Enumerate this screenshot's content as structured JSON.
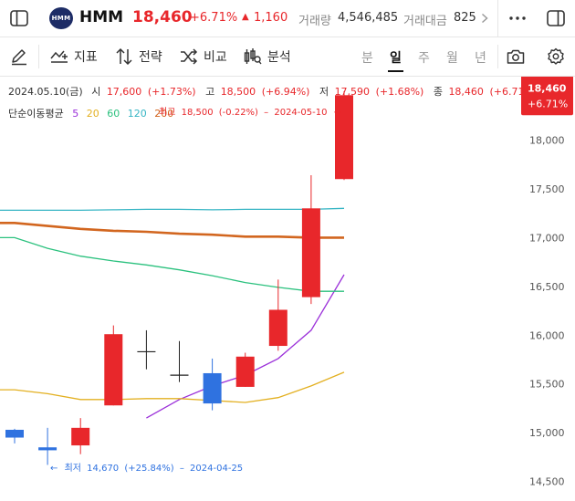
{
  "header": {
    "logo_text": "HMM",
    "name": "HMM",
    "price": "18,460",
    "change_pct": "+6.71%",
    "change_arrow": "▲",
    "change_abs": "1,160",
    "volume_label": "거래량",
    "volume_value": "4,546,485",
    "amount_label": "거래대금",
    "amount_value": "825",
    "icons": {
      "sidebar": "sidebar-toggle-icon",
      "more": "more-dots-icon",
      "panel": "panel-toggle-icon",
      "chevron": "chevron-right-icon"
    }
  },
  "toolbar": {
    "tools": [
      {
        "label": "지표",
        "icon": "indicator-icon"
      },
      {
        "label": "전략",
        "icon": "strategy-icon"
      },
      {
        "label": "비교",
        "icon": "compare-icon"
      },
      {
        "label": "분석",
        "icon": "analysis-icon"
      }
    ],
    "periods": [
      "분",
      "일",
      "주",
      "월",
      "년"
    ],
    "active_period": "일",
    "icons": {
      "draw": "pen-icon",
      "camera": "camera-icon",
      "settings": "gear-icon"
    }
  },
  "info": {
    "date": "2024.05.10(금)",
    "open_label": "시",
    "open": "17,600",
    "open_pct": "(+1.73%)",
    "high_label": "고",
    "high": "18,500",
    "high_pct": "(+6.94%)",
    "low_label": "저",
    "low": "17,590",
    "low_pct": "(+1.68%)",
    "close_label": "종",
    "close": "18,460",
    "close_pct": "(+6.71%)",
    "ma_label": "단순이동평균",
    "ma_periods": [
      "5",
      "20",
      "60",
      "120",
      "200"
    ]
  },
  "chart_data": {
    "type": "candlestick",
    "y_ticks": [
      14500,
      15000,
      15500,
      16000,
      16500,
      17000,
      17500,
      18000
    ],
    "y_tick_labels": [
      "14,500",
      "15,000",
      "15,500",
      "16,000",
      "16,500",
      "17,000",
      "17,500",
      "18,000"
    ],
    "ylim": [
      14300,
      18650
    ],
    "last_price_label": "18,460",
    "last_change_label": "+6.71%",
    "candles": [
      {
        "open": 15030,
        "high": 15040,
        "low": 14890,
        "close": 14950
      },
      {
        "open": 14850,
        "high": 15050,
        "low": 14670,
        "close": 14820
      },
      {
        "open": 14870,
        "high": 15150,
        "low": 14780,
        "close": 15050
      },
      {
        "open": 15280,
        "high": 16100,
        "low": 15280,
        "close": 16010
      },
      {
        "open": 15840,
        "high": 16050,
        "low": 15650,
        "close": 15830
      },
      {
        "open": 15600,
        "high": 15940,
        "low": 15520,
        "close": 15590
      },
      {
        "open": 15610,
        "high": 15760,
        "low": 15230,
        "close": 15300
      },
      {
        "open": 15470,
        "high": 15820,
        "low": 15470,
        "close": 15780
      },
      {
        "open": 15890,
        "high": 16570,
        "low": 15840,
        "close": 16260
      },
      {
        "open": 16390,
        "high": 17640,
        "low": 16320,
        "close": 17300
      },
      {
        "open": 17600,
        "high": 18500,
        "low": 17590,
        "close": 18460
      }
    ],
    "moving_averages": [
      {
        "name": "5",
        "color": "#9b30d9",
        "values": [
          null,
          null,
          null,
          null,
          15150,
          15340,
          15480,
          15590,
          15760,
          16050,
          16620
        ]
      },
      {
        "name": "20",
        "color": "#e3b021",
        "values": [
          15440,
          15400,
          15340,
          15340,
          15350,
          15350,
          15330,
          15310,
          15360,
          15480,
          15620
        ]
      },
      {
        "name": "60",
        "color": "#2bc17e",
        "values": [
          17000,
          16890,
          16810,
          16760,
          16720,
          16670,
          16610,
          16540,
          16490,
          16450,
          16450
        ]
      },
      {
        "name": "120",
        "color": "#36b5c4",
        "values": [
          17280,
          17280,
          17280,
          17285,
          17290,
          17290,
          17285,
          17290,
          17290,
          17290,
          17300
        ]
      },
      {
        "name": "200",
        "color": "#d2661f",
        "values": [
          17150,
          17120,
          17090,
          17070,
          17060,
          17040,
          17030,
          17010,
          17010,
          17000,
          17000
        ]
      }
    ],
    "annotations": {
      "high": {
        "label": "최고",
        "value": "18,500",
        "pct": "(-0.22%)",
        "date": "2024-05-10",
        "arrow": "→"
      },
      "low": {
        "label": "최저",
        "value": "14,670",
        "pct": "(+25.84%)",
        "date": "2024-04-25",
        "arrow": "←"
      }
    },
    "colors": {
      "up": "#e8272b",
      "down": "#2f72e0"
    }
  }
}
